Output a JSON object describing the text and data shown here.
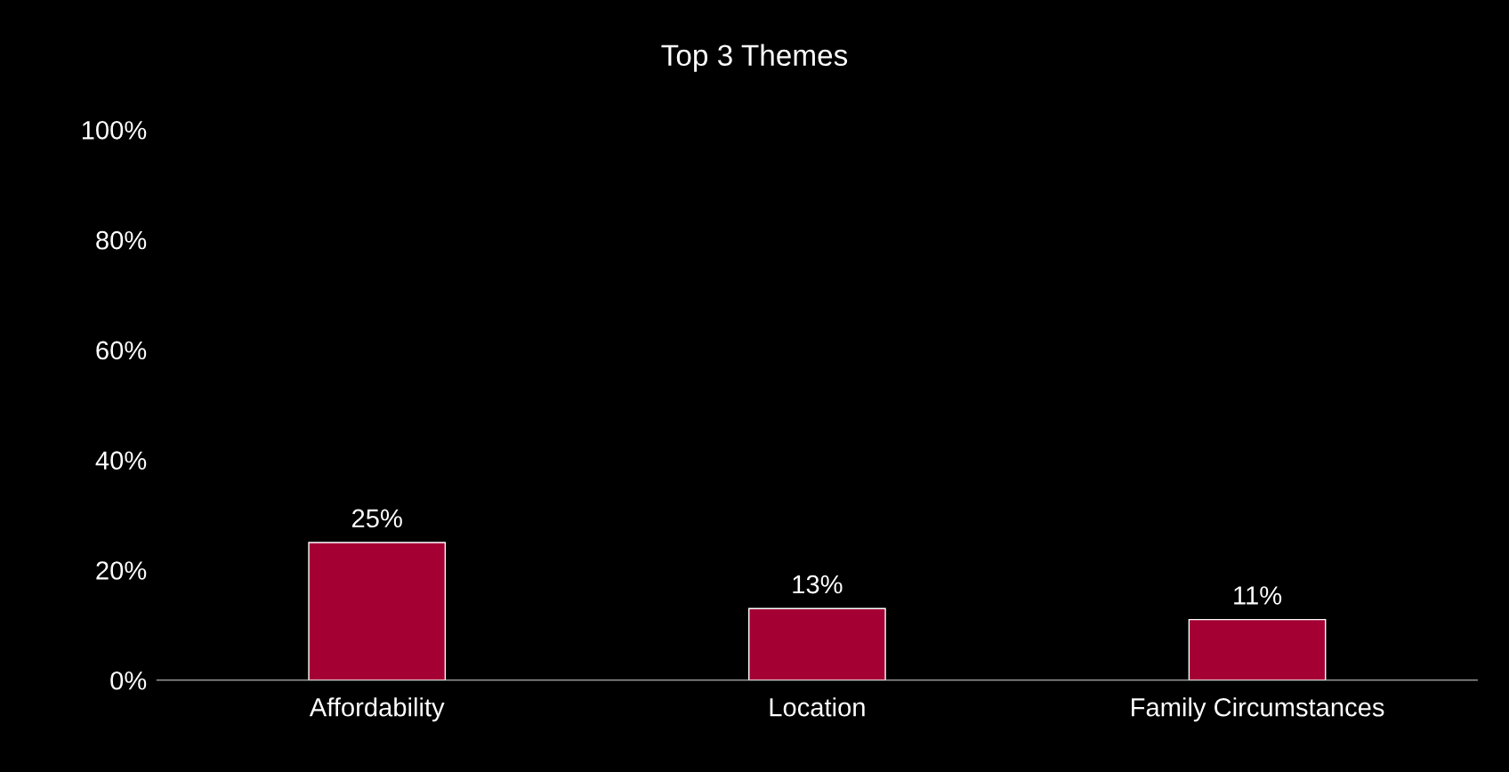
{
  "chart_data": {
    "type": "bar",
    "title": "Top 3 Themes",
    "categories": [
      "Affordability",
      "Location",
      "Family Circumstances"
    ],
    "values": [
      25,
      13,
      11
    ],
    "color": "#a50034",
    "value_labels": [
      "25%",
      "13%",
      "11%"
    ],
    "ylim": [
      0,
      100
    ],
    "yticks": [
      {
        "value": 0,
        "label": "0%"
      },
      {
        "value": 20,
        "label": "20%"
      },
      {
        "value": 40,
        "label": "40%"
      },
      {
        "value": 60,
        "label": "60%"
      },
      {
        "value": 80,
        "label": "80%"
      },
      {
        "value": 100,
        "label": "100%"
      }
    ],
    "grid": false,
    "legend": false
  }
}
